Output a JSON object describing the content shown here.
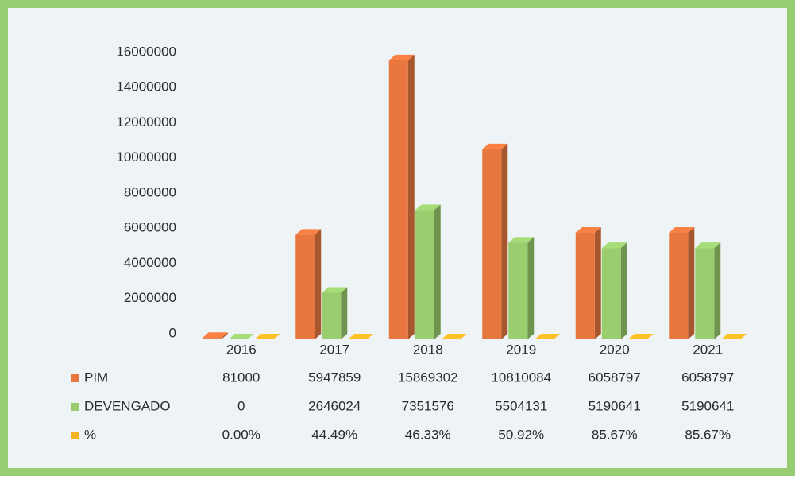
{
  "chart_data": {
    "type": "bar3d",
    "categories": [
      "2016",
      "2017",
      "2018",
      "2019",
      "2020",
      "2021"
    ],
    "series": [
      {
        "name": "PIM",
        "color": "#e8773f",
        "values": [
          81000,
          5947859,
          15869302,
          10810084,
          6058797,
          6058797
        ]
      },
      {
        "name": "DEVENGADO",
        "color": "#9acd6e",
        "values": [
          0,
          2646024,
          7351576,
          5504131,
          5190641,
          5190641
        ]
      },
      {
        "name": "%",
        "color": "#f5b324",
        "values": [
          0,
          44.49,
          46.33,
          50.92,
          85.67,
          85.67
        ],
        "value_labels": [
          "0.00%",
          "44.49%",
          "46.33%",
          "50.92%",
          "85.67%",
          "85.67%"
        ]
      }
    ],
    "ylim": [
      0,
      16000000
    ],
    "yticks": [
      0,
      2000000,
      4000000,
      6000000,
      8000000,
      10000000,
      12000000,
      14000000,
      16000000
    ],
    "grid": false,
    "data_table": true
  }
}
